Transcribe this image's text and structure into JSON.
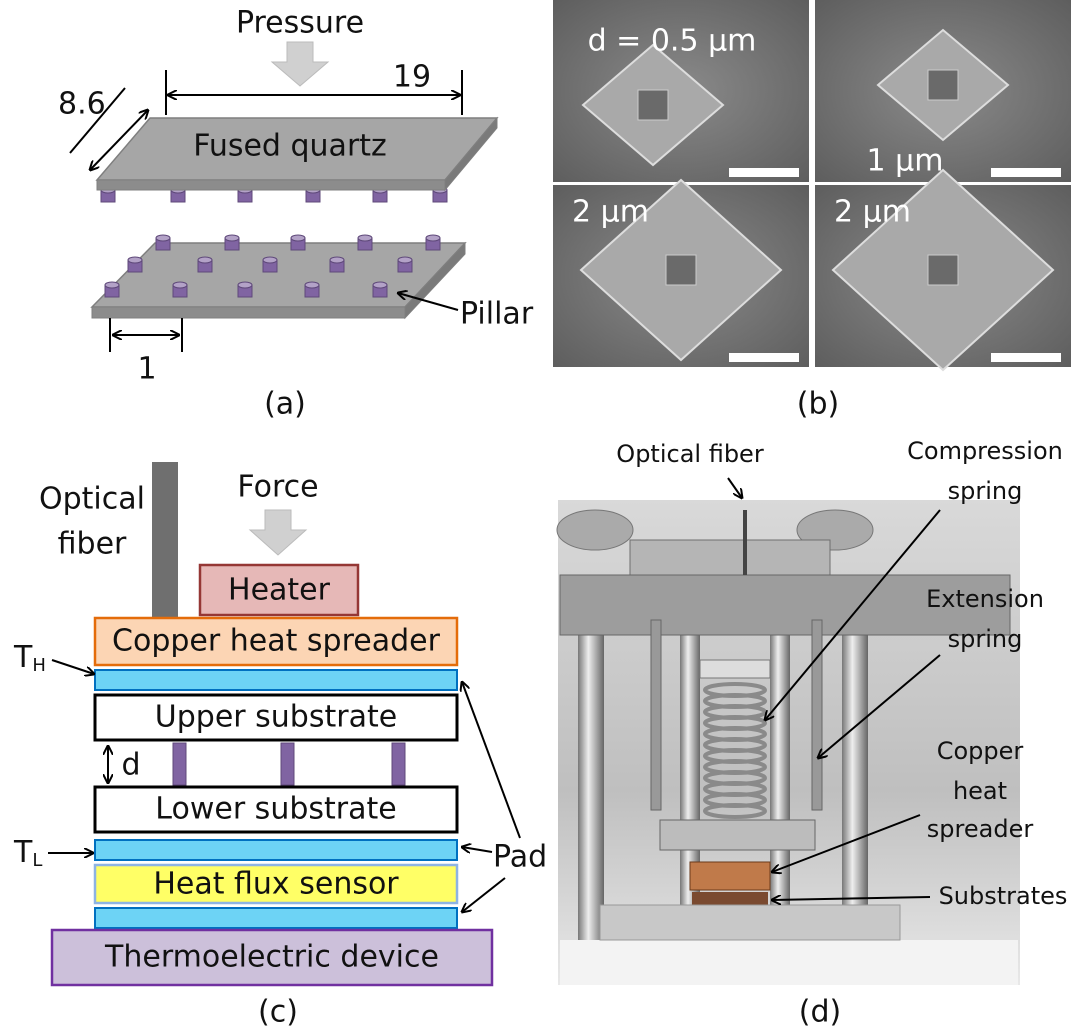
{
  "panel_a": {
    "pressure": "Pressure",
    "length": "19",
    "width": "8.6",
    "plate_label": "Fused quartz",
    "pillar_label": "Pillar",
    "pitch": "1",
    "caption": "(a)"
  },
  "panel_b": {
    "images": [
      {
        "label": "d = 0.5 μm"
      },
      {
        "label": "1 μm"
      },
      {
        "label": "2 μm"
      },
      {
        "label": "2 μm"
      }
    ],
    "caption": "(b)"
  },
  "panel_c": {
    "fiber_label": [
      "Optical",
      "fiber"
    ],
    "force": "Force",
    "layers": {
      "heater": "Heater",
      "copper": "Copper heat spreader",
      "upper": "Upper substrate",
      "lower": "Lower substrate",
      "sensor": "Heat flux sensor",
      "thermoelectric": "Thermoelectric device"
    },
    "t_high": {
      "base": "T",
      "sub": "H"
    },
    "t_low": {
      "base": "T",
      "sub": "L"
    },
    "gap": "d",
    "pad": "Pad",
    "caption": "(c)"
  },
  "panel_d": {
    "labels": {
      "fiber": "Optical fiber",
      "compression": [
        "Compression",
        "spring"
      ],
      "extension": [
        "Extension",
        "spring"
      ],
      "copper": [
        "Copper",
        "heat",
        "spreader"
      ],
      "substrates": "Substrates"
    },
    "caption": "(d)"
  }
}
